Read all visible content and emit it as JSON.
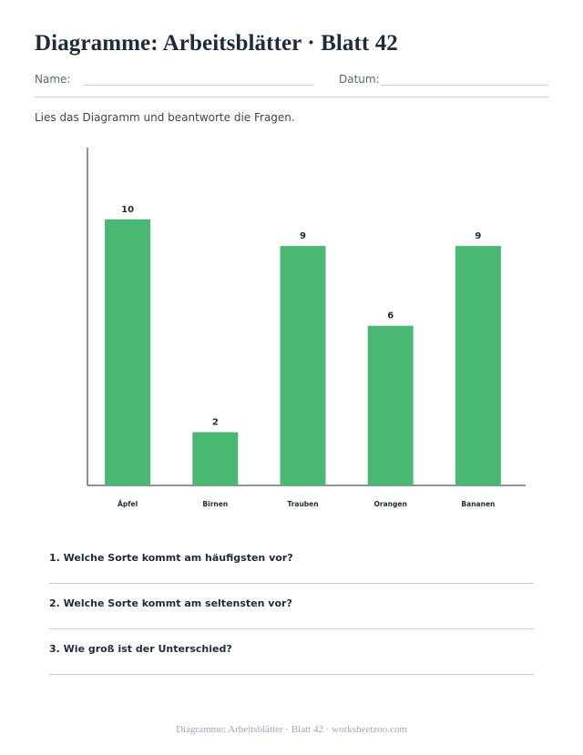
{
  "header": {
    "title": "Diagramme: Arbeitsblätter · Blatt 42",
    "name_label": "Name:",
    "date_label": "Datum:"
  },
  "instruction": "Lies das Diagramm und beantworte die Fragen.",
  "chart_data": {
    "type": "bar",
    "categories": [
      "Äpfel",
      "Birnen",
      "Trauben",
      "Orangen",
      "Bananen"
    ],
    "values": [
      10,
      2,
      9,
      6,
      9
    ],
    "title": "",
    "xlabel": "",
    "ylabel": "",
    "ylim": [
      0,
      12.7
    ],
    "grid": false,
    "data_labels": true,
    "colors": {
      "bar": "#4ab873",
      "axis": "#1f2b3d"
    }
  },
  "questions": [
    {
      "text": "1. Welche Sorte kommt am häufigsten vor?"
    },
    {
      "text": "2. Welche Sorte kommt am seltensten vor?"
    },
    {
      "text": "3. Wie groß ist der Unterschied?"
    }
  ],
  "footer": "Diagramme: Arbeitsblätter · Blatt 42 · worksheetzoo.com"
}
